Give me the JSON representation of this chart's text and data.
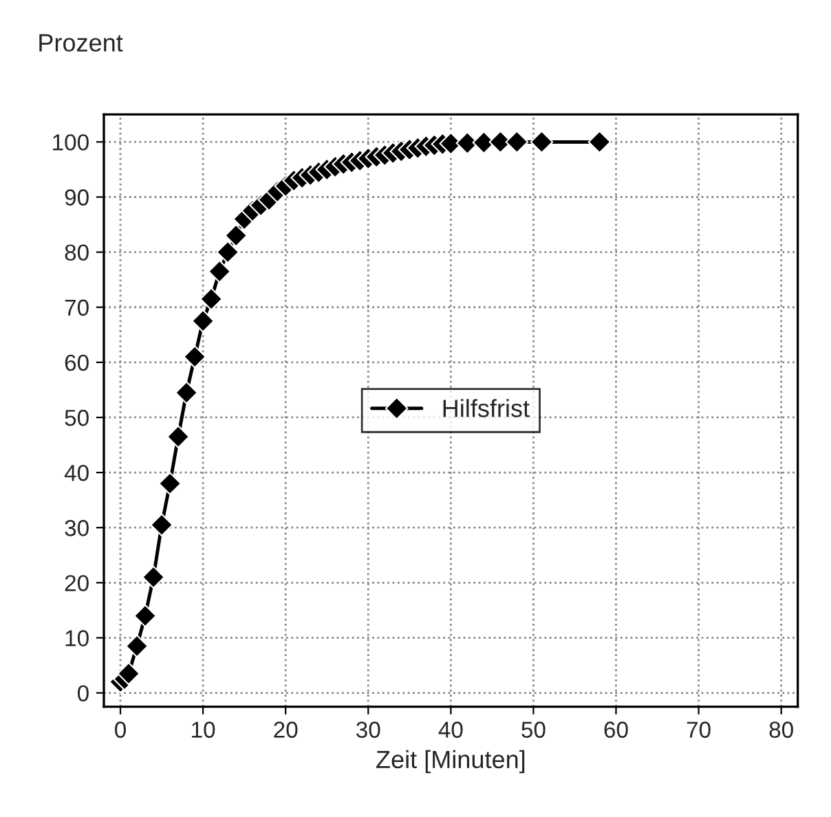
{
  "chart_data": {
    "type": "line",
    "xlabel": "Zeit [Minuten]",
    "ylabel": "Prozent",
    "x": [
      0,
      0.5,
      1,
      2,
      3,
      4,
      5,
      6,
      7,
      8,
      9,
      10,
      11,
      12,
      13,
      14,
      15,
      16,
      17,
      18,
      19,
      20,
      21,
      22,
      23,
      24,
      25,
      26,
      27,
      28,
      29,
      30,
      31,
      32,
      33,
      34,
      35,
      36,
      37,
      38,
      39,
      40,
      42,
      44,
      46,
      48,
      51,
      58
    ],
    "series": [
      {
        "name": "Hilfsfrist",
        "color": "#000000",
        "values": [
          2,
          2.5,
          3.5,
          8.5,
          14,
          21,
          30.5,
          38,
          46.5,
          54.5,
          61,
          67.5,
          71.5,
          76.5,
          80,
          83,
          86,
          87.5,
          88.5,
          89.5,
          91,
          92,
          93,
          93.5,
          94,
          94.5,
          95,
          95.5,
          96,
          96.3,
          96.6,
          97,
          97.3,
          97.6,
          98,
          98.3,
          98.6,
          98.9,
          99.2,
          99.4,
          99.6,
          99.7,
          99.8,
          99.9,
          100,
          100,
          100,
          100
        ]
      }
    ],
    "xlim": [
      -2,
      82
    ],
    "ylim": [
      -2.5,
      105
    ],
    "xticks": [
      0,
      10,
      20,
      30,
      40,
      50,
      60,
      70,
      80
    ],
    "yticks": [
      0,
      10,
      20,
      30,
      40,
      50,
      60,
      70,
      80,
      90,
      100
    ],
    "grid": true,
    "legend": "center",
    "marker": "diamond",
    "line_style": "solid"
  }
}
